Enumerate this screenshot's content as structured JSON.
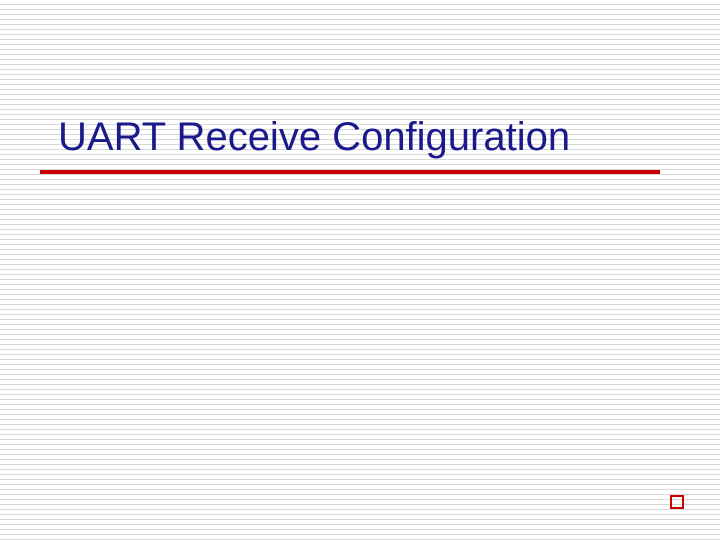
{
  "slide": {
    "title": "UART Receive Configuration",
    "title_color": "#1a1a8a",
    "title_fontsize": 40,
    "underline_color": "#cc0000",
    "underline_width": 620,
    "underline_thickness": 4,
    "corner_box_color": "#cc0000",
    "corner_box_size": 14,
    "background_color": "#ffffff",
    "line_color": "#d8d8d8",
    "line_spacing": 5
  }
}
